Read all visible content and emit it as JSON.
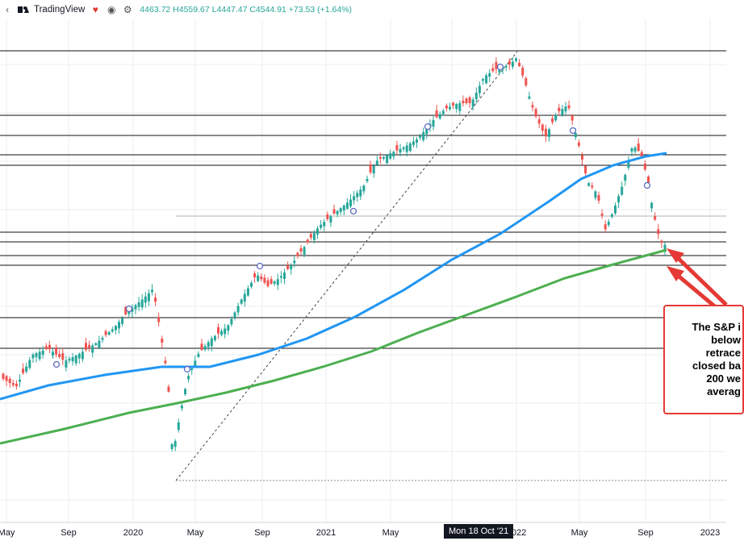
{
  "header": {
    "brand": "TradingView",
    "ohlc": "4463.72  H4559.67  L4447.47  C4544.91  +73.53  (+1.64%)",
    "icons": [
      "chevron-left-icon",
      "tradingview-logo-icon",
      "heart-icon",
      "eye-icon",
      "gear-icon"
    ]
  },
  "annotation": {
    "lines": [
      "The S&P i",
      "below",
      "retrace",
      "closed ba",
      "200 we",
      "averag"
    ]
  },
  "crosshair_label": "Mon 18 Oct '21",
  "chart_data": {
    "type": "candlestick",
    "x_tick_labels": [
      "May",
      "Sep",
      "2020",
      "May",
      "Sep",
      "2021",
      "May",
      "Mon 18 Oct '21",
      "2022",
      "May",
      "Sep",
      "2023"
    ],
    "series": [
      {
        "name": "",
        "role": "moving-average",
        "color": "#2196f3"
      },
      {
        "name": "",
        "role": "moving-average",
        "color": "#4caf50"
      }
    ],
    "colors": {
      "up": "#26a69a",
      "down": "#ef5350",
      "ma_fast": "#2196f3",
      "ma_slow": "#4caf50",
      "annotation": "#e53935"
    },
    "grid": true
  }
}
